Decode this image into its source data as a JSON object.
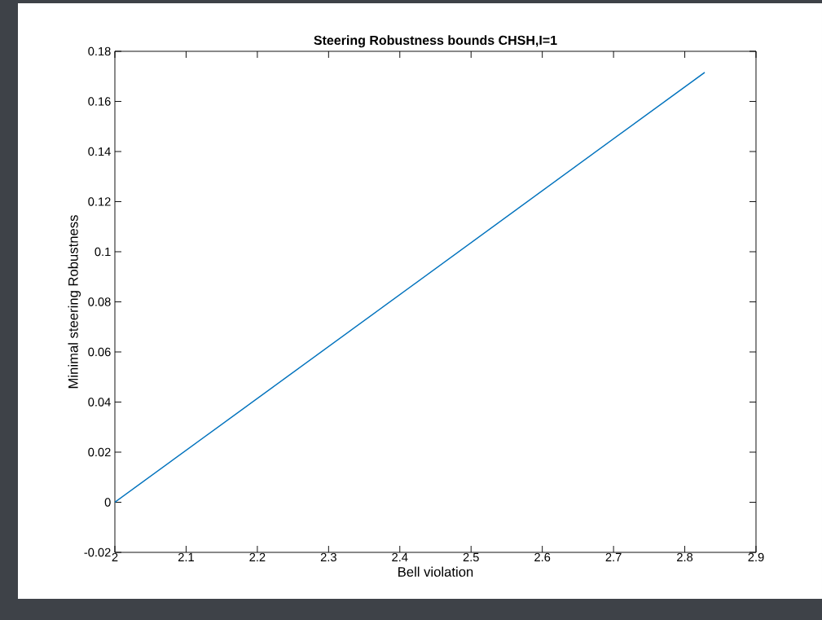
{
  "chart_data": {
    "type": "line",
    "title": "Steering Robustness bounds CHSH,I=1",
    "xlabel": "Bell violation",
    "ylabel": "Minimal steering Robustness",
    "x": [
      2,
      2.828
    ],
    "series": [
      {
        "color": "#0072bd",
        "values": [
          0,
          0.1716
        ]
      }
    ],
    "xlim": [
      2,
      2.9
    ],
    "ylim": [
      -0.02,
      0.18
    ],
    "xticks": [
      2,
      2.1,
      2.2,
      2.3,
      2.4,
      2.5,
      2.6,
      2.7,
      2.8,
      2.9
    ],
    "yticks": [
      -0.02,
      0,
      0.02,
      0.04,
      0.06,
      0.08,
      0.1,
      0.12,
      0.14,
      0.16,
      0.18
    ],
    "marker": "none",
    "line_style": "solid"
  }
}
